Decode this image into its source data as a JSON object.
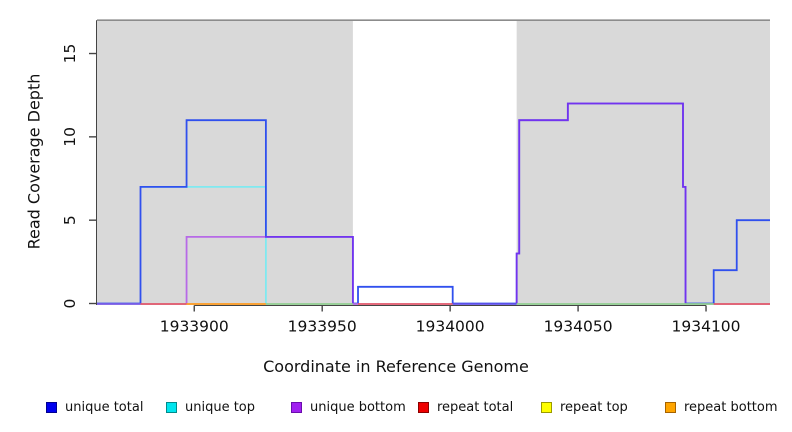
{
  "chart_data": {
    "type": "line",
    "subtype": "step-coverage",
    "title": "",
    "xlabel": "Coordinate in Reference Genome",
    "ylabel": "Read Coverage Depth",
    "xlim": [
      1933862,
      1934125
    ],
    "ylim": [
      0,
      17
    ],
    "grid": "off",
    "x_ticks": [
      1933900,
      1933950,
      1934000,
      1934050,
      1934100
    ],
    "y_ticks": [
      0,
      5,
      10,
      15
    ],
    "background_color": "#ffffff",
    "shaded_region_color": "#d9d9d9",
    "shaded_regions": [
      {
        "x1": 1933862,
        "x2": 1933962
      },
      {
        "x1": 1934026,
        "x2": 1934125
      }
    ],
    "top_reference_line": {
      "y": 17,
      "color": "#8c8c8c"
    },
    "series": [
      {
        "name": "unique top",
        "color": "#7fe9f0",
        "opacity": 1,
        "points": [
          [
            1933879,
            7
          ],
          [
            1933928,
            7
          ],
          [
            1933928,
            0
          ]
        ]
      },
      {
        "name": "unique total",
        "color": "#3050ee",
        "opacity": 1,
        "points": [
          [
            1933862,
            0
          ],
          [
            1933879,
            0
          ],
          [
            1933879,
            7
          ],
          [
            1933897,
            7
          ],
          [
            1933897,
            11
          ],
          [
            1933928,
            11
          ],
          [
            1933928,
            4
          ],
          [
            1933962,
            4
          ],
          [
            1933962,
            0
          ],
          [
            1933964,
            0
          ],
          [
            1933964,
            1
          ],
          [
            1934001,
            1
          ],
          [
            1934001,
            0
          ],
          [
            1934026,
            0
          ],
          [
            1934026,
            3
          ],
          [
            1934027,
            3
          ],
          [
            1934027,
            11
          ],
          [
            1934046,
            11
          ],
          [
            1934046,
            12
          ],
          [
            1934091,
            12
          ],
          [
            1934091,
            7
          ],
          [
            1934092,
            7
          ],
          [
            1934092,
            0
          ],
          [
            1934103,
            0
          ],
          [
            1934103,
            2
          ],
          [
            1934112,
            2
          ],
          [
            1934112,
            5
          ],
          [
            1934125,
            5
          ]
        ]
      },
      {
        "name": "unique bottom (left)",
        "color": "#a020f0",
        "opacity": 0.6,
        "points": [
          [
            1933897,
            0
          ],
          [
            1933897,
            4
          ],
          [
            1933962,
            4
          ],
          [
            1933962,
            0
          ]
        ]
      },
      {
        "name": "unique bottom (right)",
        "color": "#a020f0",
        "opacity": 0.6,
        "points": [
          [
            1934026,
            0
          ],
          [
            1934026,
            3
          ],
          [
            1934027,
            3
          ],
          [
            1934027,
            11
          ],
          [
            1934046,
            11
          ],
          [
            1934046,
            12
          ],
          [
            1934091,
            12
          ],
          [
            1934091,
            7
          ],
          [
            1934092,
            7
          ],
          [
            1934092,
            0
          ]
        ]
      }
    ],
    "zero_line_segments": [
      {
        "x1": 1933862,
        "x2": 1933879,
        "color": "#7c5fe8"
      },
      {
        "x1": 1933879,
        "x2": 1933897,
        "color": "#e0556a"
      },
      {
        "x1": 1933897,
        "x2": 1933928,
        "color": "#ff9a1e"
      },
      {
        "x1": 1933928,
        "x2": 1933962,
        "color": "#90ce90"
      },
      {
        "x1": 1933962,
        "x2": 1933964,
        "color": "#b06ae0"
      },
      {
        "x1": 1933964,
        "x2": 1934001,
        "color": "#e0556a"
      },
      {
        "x1": 1934001,
        "x2": 1934026,
        "color": "#6050e8"
      },
      {
        "x1": 1934026,
        "x2": 1934103,
        "color": "#90ce90"
      },
      {
        "x1": 1934103,
        "x2": 1934125,
        "color": "#e0556a"
      }
    ],
    "legend_position": "bottom",
    "legend": [
      {
        "label": "unique total",
        "fill": "#0000ee",
        "border": "#000090"
      },
      {
        "label": "unique top",
        "fill": "#00e5ee",
        "border": "#008b8b"
      },
      {
        "label": "unique bottom",
        "fill": "#a020f0",
        "border": "#6a0dad"
      },
      {
        "label": "repeat total",
        "fill": "#ee0000",
        "border": "#8b0000"
      },
      {
        "label": "repeat top",
        "fill": "#ffff00",
        "border": "#9b9b00"
      },
      {
        "label": "repeat bottom",
        "fill": "#ffa500",
        "border": "#a66300"
      }
    ]
  }
}
